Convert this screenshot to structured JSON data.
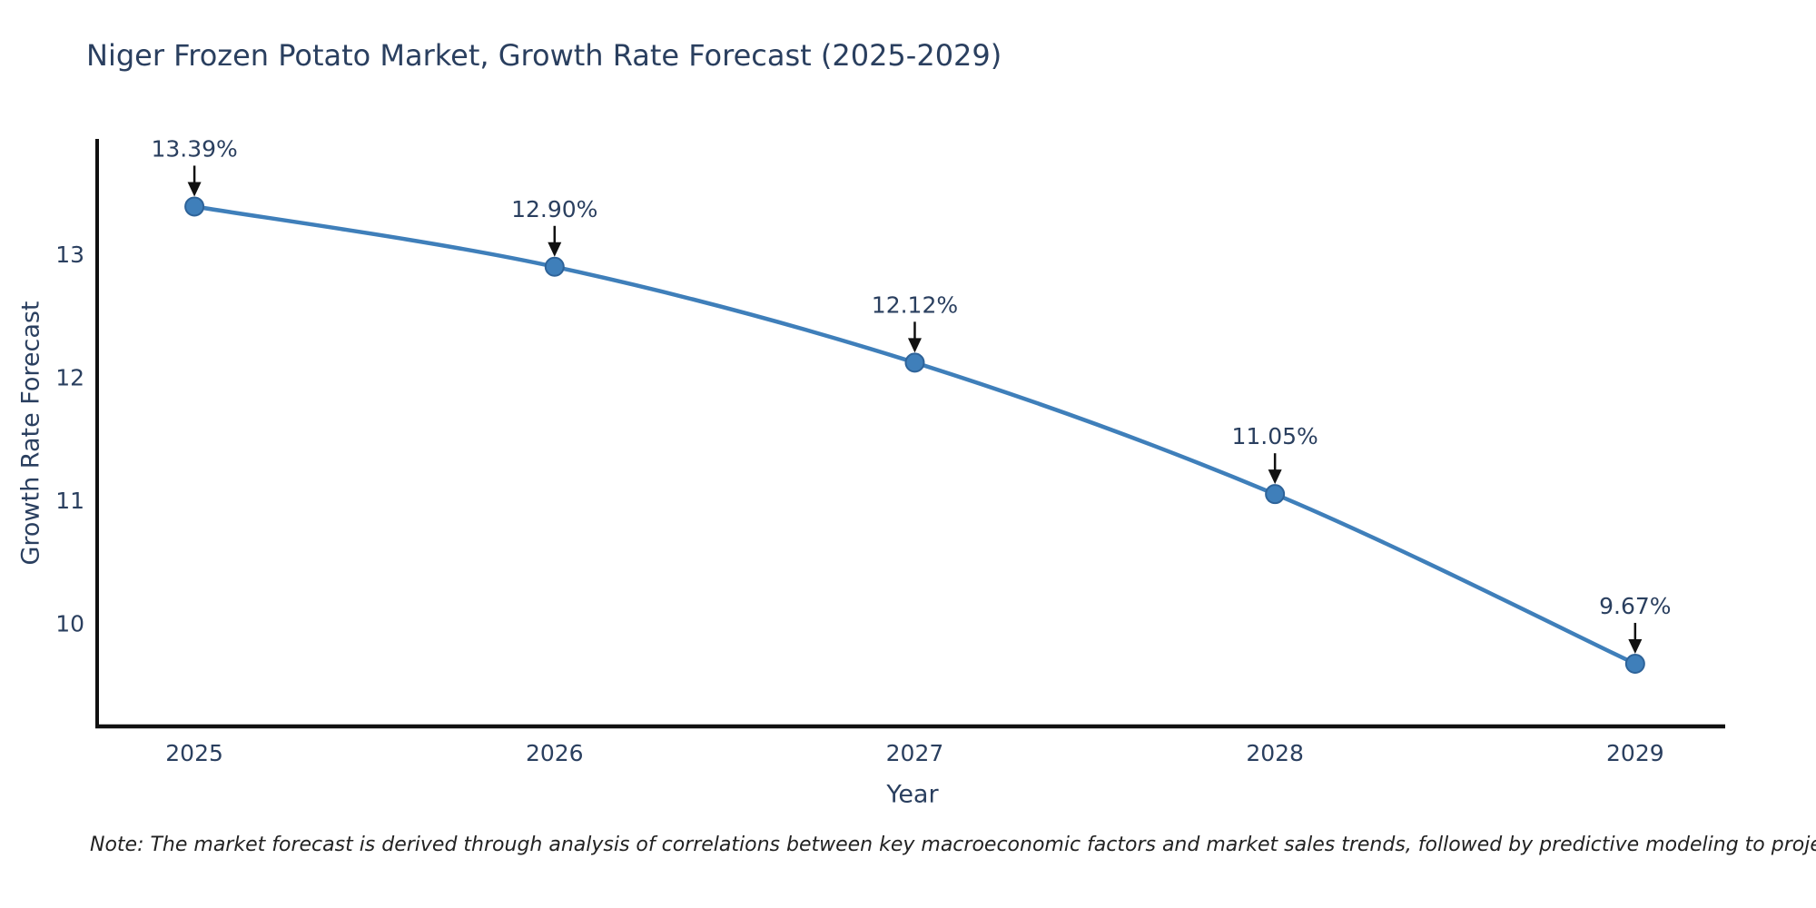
{
  "chart_data": {
    "type": "line",
    "title": "Niger Frozen Potato Market, Growth Rate Forecast (2025-2029)",
    "xlabel": "Year",
    "ylabel": "Growth Rate Forecast",
    "x": [
      2025,
      2026,
      2027,
      2028,
      2029
    ],
    "values": [
      13.39,
      12.9,
      12.12,
      11.05,
      9.67
    ],
    "point_labels": [
      "13.39%",
      "12.90%",
      "12.12%",
      "11.05%",
      "9.67%"
    ],
    "x_tick_labels": [
      "2025",
      "2026",
      "2027",
      "2028",
      "2029"
    ],
    "y_ticks": [
      10,
      11,
      12,
      13
    ],
    "y_tick_labels": [
      "10",
      "11",
      "12",
      "13"
    ],
    "xlim": [
      2024.73,
      2029.25
    ],
    "ylim": [
      9.16,
      13.94
    ],
    "grid": false,
    "legend": "none",
    "line_shape": "spline",
    "series_name": "Growth Rate Forecast",
    "note": "Note: The market forecast is derived through analysis of correlations between key macroeconomic factors and market sales trends, followed by predictive modeling to project future sales",
    "colors": {
      "line": "#3f7fba",
      "marker": "#3f7fba",
      "marker_edge": "#2e6399",
      "text": "#2a3f5f",
      "axis": "#111111",
      "arrow": "#111111",
      "note_text": "#222222",
      "background": "#ffffff"
    }
  }
}
